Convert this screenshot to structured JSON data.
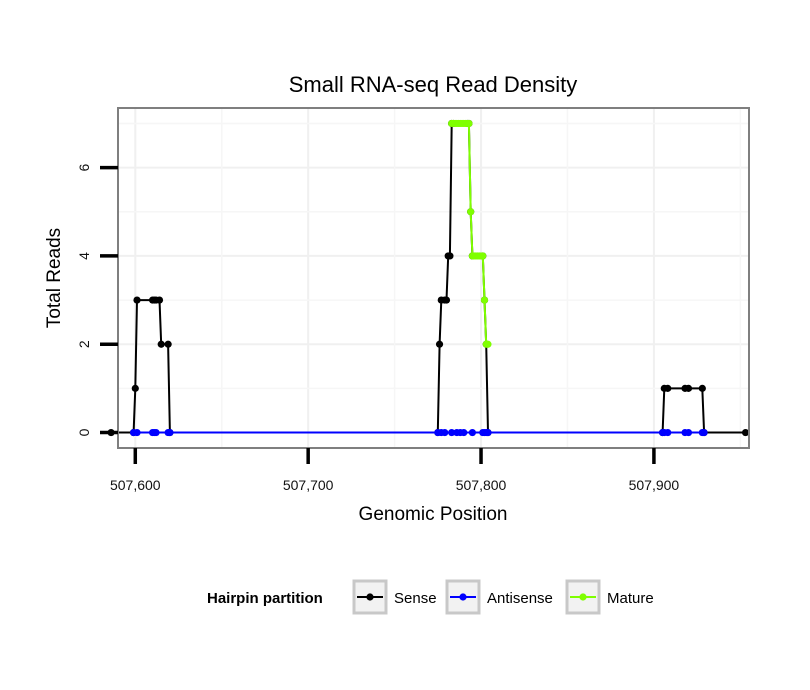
{
  "chart_data": {
    "type": "line",
    "title": "Small RNA-seq Read Density",
    "xlabel": "Genomic Position",
    "ylabel": "Total Reads",
    "xlim": [
      507590,
      507955
    ],
    "ylim": [
      -0.35,
      7.35
    ],
    "x_ticks": [
      507600,
      507700,
      507800,
      507900
    ],
    "x_tick_labels": [
      "507,600",
      "507,700",
      "507,800",
      "507,900"
    ],
    "y_ticks": [
      0,
      2,
      4,
      6
    ],
    "y_tick_labels": [
      "0",
      "2",
      "4",
      "6"
    ],
    "grid": true,
    "legend": {
      "title": "Hairpin partition",
      "position": "bottom",
      "entries": [
        {
          "label": "Sense",
          "color": "#000000"
        },
        {
          "label": "Antisense",
          "color": "#0000ff"
        },
        {
          "label": "Mature",
          "color": "#7fff00"
        }
      ]
    },
    "series": [
      {
        "name": "Sense",
        "color": "#000000",
        "x": [
          507586,
          507599,
          507600,
          507601,
          507610,
          507611,
          507612,
          507614,
          507615,
          507619,
          507620,
          507775,
          507776,
          507777,
          507779,
          507780,
          507781,
          507782,
          507783,
          507784,
          507792,
          507793,
          507794,
          507795,
          507801,
          507802,
          507803,
          507804,
          507905,
          507906,
          507908,
          507918,
          507920,
          507928,
          507929,
          507953
        ],
        "values": [
          0,
          0,
          1,
          3,
          3,
          3,
          3,
          3,
          2,
          2,
          0,
          0,
          2,
          3,
          3,
          3,
          4,
          4,
          7,
          7,
          7,
          7,
          5,
          4,
          4,
          3,
          2,
          0,
          0,
          1,
          1,
          1,
          1,
          1,
          0,
          0
        ]
      },
      {
        "name": "Antisense",
        "color": "#0000ff",
        "x": [
          507599,
          507601,
          507610,
          507611,
          507612,
          507619,
          507620,
          507775,
          507777,
          507779,
          507783,
          507786,
          507788,
          507790,
          507795,
          507801,
          507802,
          507803,
          507804,
          507905,
          507906,
          507908,
          507918,
          507920,
          507928,
          507929
        ],
        "values": [
          0,
          0,
          0,
          0,
          0,
          0,
          0,
          0,
          0,
          0,
          0,
          0,
          0,
          0,
          0,
          0,
          0,
          0,
          0,
          0,
          0,
          0,
          0,
          0,
          0,
          0
        ]
      },
      {
        "name": "Mature",
        "color": "#7fff00",
        "x": [
          507783,
          507784,
          507785,
          507786,
          507787,
          507788,
          507789,
          507790,
          507791,
          507792,
          507793,
          507794,
          507795,
          507796,
          507797,
          507798,
          507799,
          507800,
          507801,
          507802,
          507803,
          507804
        ],
        "values": [
          7,
          7,
          7,
          7,
          7,
          7,
          7,
          7,
          7,
          7,
          7,
          5,
          4,
          4,
          4,
          4,
          4,
          4,
          4,
          3,
          2,
          2
        ]
      }
    ]
  }
}
